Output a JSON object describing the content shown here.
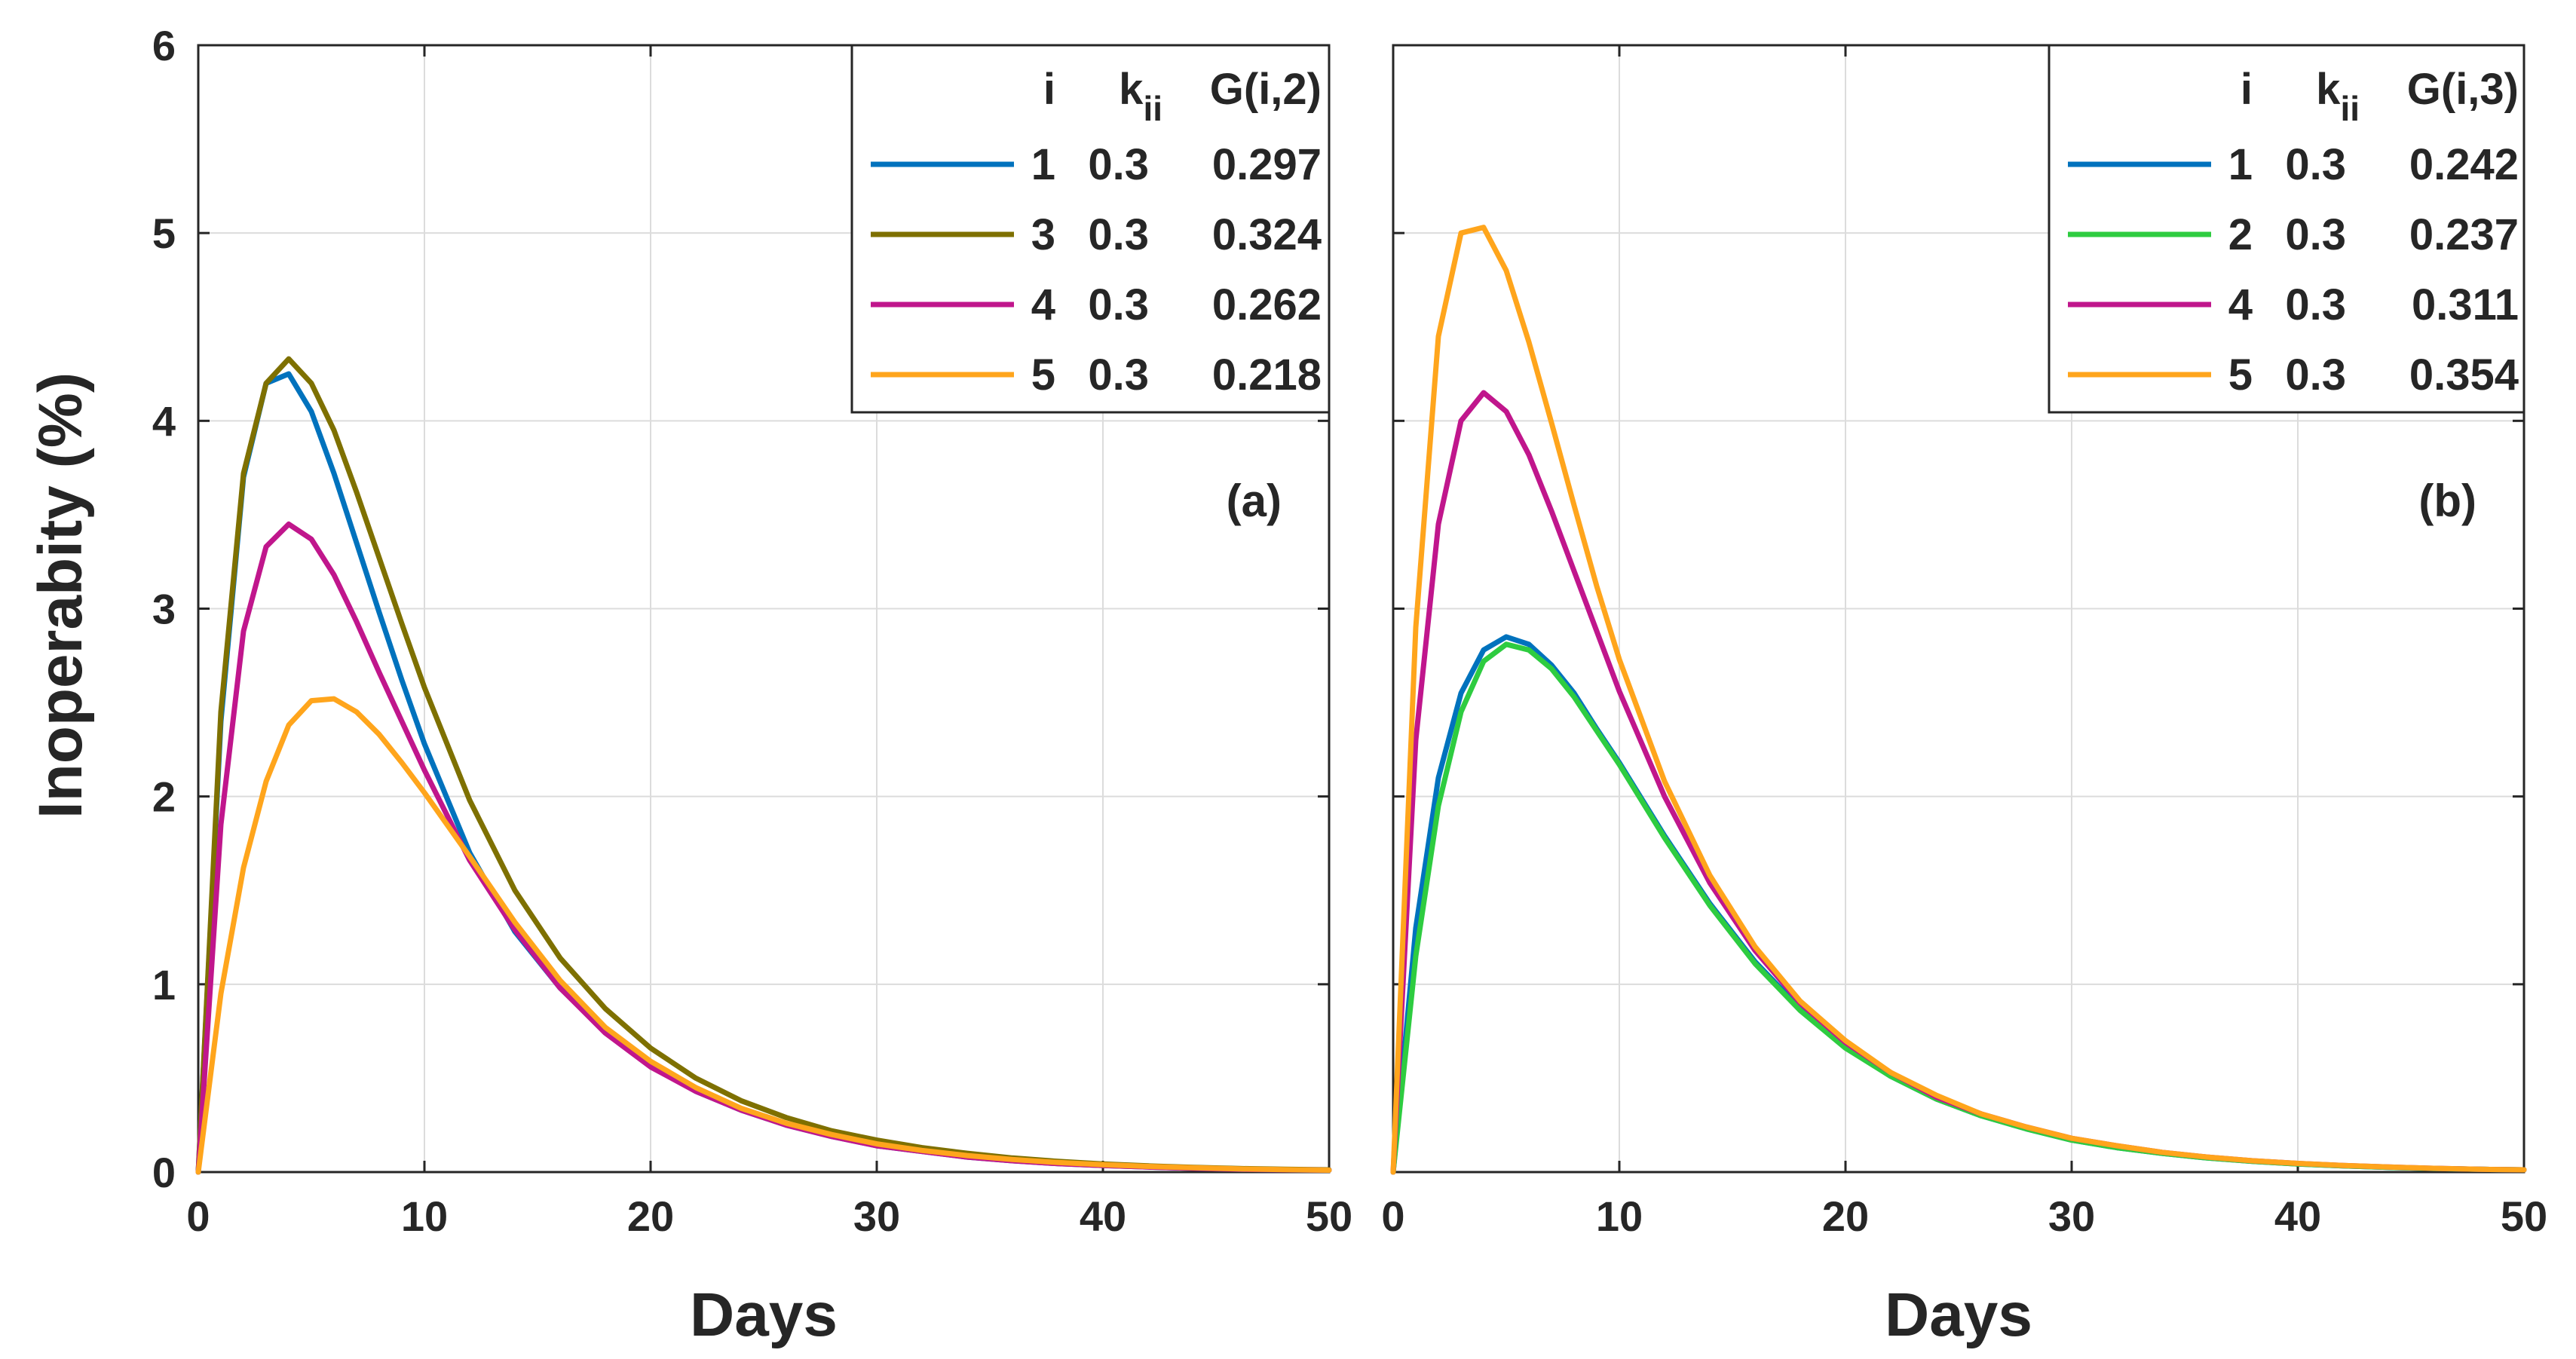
{
  "ylabel": "Inoperabity (%)",
  "xlabel": "Days",
  "chart_data": [
    {
      "type": "line",
      "panel_label": "(a)",
      "xlabel": "Days",
      "ylabel": "Inoperabity (%)",
      "xlim": [
        0,
        50
      ],
      "ylim": [
        0,
        6
      ],
      "xticks": [
        0,
        10,
        20,
        30,
        40,
        50
      ],
      "yticks": [
        0,
        1,
        2,
        3,
        4,
        5,
        6
      ],
      "xtick_labels": [
        "0",
        "10",
        "20",
        "30",
        "40",
        "50"
      ],
      "ytick_labels": [
        "0",
        "1",
        "2",
        "3",
        "4",
        "5",
        "6"
      ],
      "grid": true,
      "legend": {
        "placement": "top-right",
        "header": {
          "i": "i",
          "k": "k",
          "k_sub": "ii",
          "g": "G(i,2)"
        },
        "entries": [
          {
            "i": "1",
            "k": "0.3",
            "g": "0.297"
          },
          {
            "i": "3",
            "k": "0.3",
            "g": "0.324"
          },
          {
            "i": "4",
            "k": "0.3",
            "g": "0.262"
          },
          {
            "i": "5",
            "k": "0.3",
            "g": "0.218"
          }
        ]
      },
      "series": [
        {
          "name": "1",
          "color": "#0072BD",
          "x": [
            0,
            1,
            2,
            3,
            4,
            5,
            6,
            7,
            8,
            9,
            10,
            12,
            14,
            16,
            18,
            20,
            22,
            24,
            26,
            28,
            30,
            32,
            34,
            36,
            38,
            40,
            42,
            44,
            46,
            48,
            50
          ],
          "y": [
            0,
            2.4,
            3.7,
            4.2,
            4.25,
            4.05,
            3.72,
            3.35,
            2.98,
            2.62,
            2.28,
            1.7,
            1.28,
            0.98,
            0.75,
            0.57,
            0.43,
            0.33,
            0.25,
            0.19,
            0.14,
            0.11,
            0.08,
            0.06,
            0.045,
            0.035,
            0.027,
            0.02,
            0.015,
            0.012,
            0.01
          ]
        },
        {
          "name": "3",
          "color": "#7E7000",
          "x": [
            0,
            1,
            2,
            3,
            4,
            5,
            6,
            7,
            8,
            9,
            10,
            12,
            14,
            16,
            18,
            20,
            22,
            24,
            26,
            28,
            30,
            32,
            34,
            36,
            38,
            40,
            42,
            44,
            46,
            48,
            50
          ],
          "y": [
            0,
            2.45,
            3.72,
            4.2,
            4.33,
            4.2,
            3.95,
            3.62,
            3.27,
            2.92,
            2.58,
            1.98,
            1.5,
            1.14,
            0.87,
            0.66,
            0.5,
            0.38,
            0.29,
            0.22,
            0.17,
            0.13,
            0.1,
            0.075,
            0.057,
            0.043,
            0.033,
            0.025,
            0.019,
            0.015,
            0.012
          ]
        },
        {
          "name": "4",
          "color": "#C0168C",
          "x": [
            0,
            1,
            2,
            3,
            4,
            5,
            6,
            7,
            8,
            9,
            10,
            12,
            14,
            16,
            18,
            20,
            22,
            24,
            26,
            28,
            30,
            32,
            34,
            36,
            38,
            40,
            42,
            44,
            46,
            48,
            50
          ],
          "y": [
            0,
            1.85,
            2.88,
            3.33,
            3.45,
            3.37,
            3.18,
            2.93,
            2.66,
            2.4,
            2.14,
            1.66,
            1.29,
            0.98,
            0.74,
            0.56,
            0.43,
            0.33,
            0.25,
            0.19,
            0.14,
            0.11,
            0.08,
            0.06,
            0.045,
            0.035,
            0.027,
            0.02,
            0.015,
            0.012,
            0.01
          ]
        },
        {
          "name": "5",
          "color": "#FFA51C",
          "x": [
            0,
            1,
            2,
            3,
            4,
            5,
            6,
            7,
            8,
            9,
            10,
            12,
            14,
            16,
            18,
            20,
            22,
            24,
            26,
            28,
            30,
            32,
            34,
            36,
            38,
            40,
            42,
            44,
            46,
            48,
            50
          ],
          "y": [
            0,
            0.95,
            1.62,
            2.08,
            2.38,
            2.51,
            2.52,
            2.45,
            2.33,
            2.18,
            2.02,
            1.68,
            1.33,
            1.02,
            0.77,
            0.59,
            0.45,
            0.34,
            0.26,
            0.2,
            0.15,
            0.115,
            0.088,
            0.067,
            0.051,
            0.039,
            0.03,
            0.023,
            0.017,
            0.013,
            0.01
          ]
        }
      ]
    },
    {
      "type": "line",
      "panel_label": "(b)",
      "xlabel": "Days",
      "xlim": [
        0,
        50
      ],
      "ylim": [
        0,
        6
      ],
      "xticks": [
        0,
        10,
        20,
        30,
        40,
        50
      ],
      "xtick_labels": [
        "0",
        "10",
        "20",
        "30",
        "40",
        "50"
      ],
      "grid": true,
      "legend": {
        "placement": "top-right",
        "header": {
          "i": "i",
          "k": "k",
          "k_sub": "ii",
          "g": "G(i,3)"
        },
        "entries": [
          {
            "i": "1",
            "k": "0.3",
            "g": "0.242"
          },
          {
            "i": "2",
            "k": "0.3",
            "g": "0.237"
          },
          {
            "i": "4",
            "k": "0.3",
            "g": "0.311"
          },
          {
            "i": "5",
            "k": "0.3",
            "g": "0.354"
          }
        ]
      },
      "series": [
        {
          "name": "1",
          "color": "#0072BD",
          "x": [
            0,
            1,
            2,
            3,
            4,
            5,
            6,
            7,
            8,
            9,
            10,
            12,
            14,
            16,
            18,
            20,
            22,
            24,
            26,
            28,
            30,
            32,
            34,
            36,
            38,
            40,
            42,
            44,
            46,
            48,
            50
          ],
          "y": [
            0,
            1.3,
            2.1,
            2.55,
            2.78,
            2.85,
            2.81,
            2.7,
            2.55,
            2.36,
            2.18,
            1.79,
            1.43,
            1.12,
            0.87,
            0.67,
            0.51,
            0.39,
            0.3,
            0.23,
            0.17,
            0.13,
            0.1,
            0.075,
            0.057,
            0.043,
            0.033,
            0.025,
            0.019,
            0.015,
            0.012
          ]
        },
        {
          "name": "2",
          "color": "#2ECC40",
          "x": [
            0,
            1,
            2,
            3,
            4,
            5,
            6,
            7,
            8,
            9,
            10,
            12,
            14,
            16,
            18,
            20,
            22,
            24,
            26,
            28,
            30,
            32,
            34,
            36,
            38,
            40,
            42,
            44,
            46,
            48,
            50
          ],
          "y": [
            0,
            1.15,
            1.95,
            2.45,
            2.72,
            2.81,
            2.78,
            2.68,
            2.53,
            2.35,
            2.17,
            1.78,
            1.42,
            1.11,
            0.86,
            0.66,
            0.51,
            0.39,
            0.3,
            0.23,
            0.17,
            0.13,
            0.1,
            0.075,
            0.057,
            0.043,
            0.033,
            0.025,
            0.019,
            0.015,
            0.012
          ]
        },
        {
          "name": "4",
          "color": "#C0168C",
          "x": [
            0,
            1,
            2,
            3,
            4,
            5,
            6,
            7,
            8,
            9,
            10,
            12,
            14,
            16,
            18,
            20,
            22,
            24,
            26,
            28,
            30,
            32,
            34,
            36,
            38,
            40,
            42,
            44,
            46,
            48,
            50
          ],
          "y": [
            0,
            2.3,
            3.45,
            4.0,
            4.15,
            4.05,
            3.82,
            3.52,
            3.2,
            2.88,
            2.56,
            2.0,
            1.54,
            1.18,
            0.9,
            0.69,
            0.53,
            0.4,
            0.31,
            0.24,
            0.18,
            0.14,
            0.105,
            0.08,
            0.06,
            0.046,
            0.035,
            0.027,
            0.02,
            0.015,
            0.012
          ]
        },
        {
          "name": "5",
          "color": "#FFA51C",
          "x": [
            0,
            1,
            2,
            3,
            4,
            5,
            6,
            7,
            8,
            9,
            10,
            12,
            14,
            16,
            18,
            20,
            22,
            24,
            26,
            28,
            30,
            32,
            34,
            36,
            38,
            40,
            42,
            44,
            46,
            48,
            50
          ],
          "y": [
            0,
            2.9,
            4.45,
            5.0,
            5.03,
            4.8,
            4.42,
            3.99,
            3.55,
            3.12,
            2.73,
            2.08,
            1.58,
            1.2,
            0.91,
            0.7,
            0.53,
            0.41,
            0.31,
            0.24,
            0.18,
            0.14,
            0.105,
            0.08,
            0.06,
            0.046,
            0.035,
            0.027,
            0.02,
            0.015,
            0.012
          ]
        }
      ]
    }
  ]
}
